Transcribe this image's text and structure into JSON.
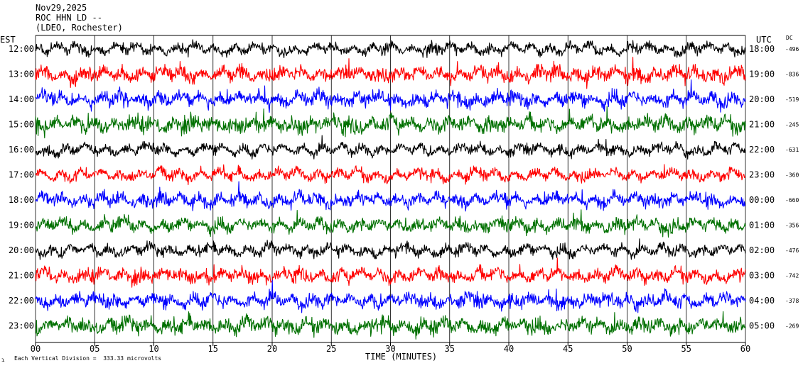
{
  "header": {
    "date": "Nov29,2025",
    "station": "ROC HHN LD --",
    "network": "(LDEO, Rochester)"
  },
  "axis": {
    "left_zone": "EST",
    "right_zone": "UTC",
    "dc_label": "DC",
    "xlabel": "TIME (MINUTES)",
    "footer_mark": "ɿ",
    "scale_note": "Each Vertical Division =  333.33 microvolts"
  },
  "colors": {
    "trace_cycle": [
      "#000000",
      "#ff0000",
      "#0000ff",
      "#007000"
    ],
    "background": "#ffffff",
    "grid": "#000000"
  },
  "chart_data": {
    "type": "line",
    "title": "",
    "xlabel": "TIME (MINUTES)",
    "ylabel": "",
    "xlim": [
      0,
      60
    ],
    "x_ticks": [
      "00",
      "05",
      "10",
      "15",
      "20",
      "25",
      "30",
      "35",
      "40",
      "45",
      "50",
      "55",
      "60"
    ],
    "grid": true,
    "vertical_division_microvolts": 333.33,
    "rows": [
      {
        "est": "12:00",
        "utc": "18:00",
        "dc": "-496",
        "color": "#000000",
        "noise": 0.55
      },
      {
        "est": "13:00",
        "utc": "19:00",
        "dc": "-836",
        "color": "#ff0000",
        "noise": 0.8
      },
      {
        "est": "14:00",
        "utc": "20:00",
        "dc": "-519",
        "color": "#0000ff",
        "noise": 0.8
      },
      {
        "est": "15:00",
        "utc": "21:00",
        "dc": "-245",
        "color": "#007000",
        "noise": 0.85
      },
      {
        "est": "16:00",
        "utc": "22:00",
        "dc": "-631",
        "color": "#000000",
        "noise": 0.55
      },
      {
        "est": "17:00",
        "utc": "23:00",
        "dc": "-360",
        "color": "#ff0000",
        "noise": 0.6
      },
      {
        "est": "18:00",
        "utc": "00:00",
        "dc": "-660",
        "color": "#0000ff",
        "noise": 0.7
      },
      {
        "est": "19:00",
        "utc": "01:00",
        "dc": "-356",
        "color": "#007000",
        "noise": 0.7
      },
      {
        "est": "20:00",
        "utc": "02:00",
        "dc": "-476",
        "color": "#000000",
        "noise": 0.6
      },
      {
        "est": "21:00",
        "utc": "03:00",
        "dc": "-742",
        "color": "#ff0000",
        "noise": 0.7
      },
      {
        "est": "22:00",
        "utc": "04:00",
        "dc": "-378",
        "color": "#0000ff",
        "noise": 0.75
      },
      {
        "est": "23:00",
        "utc": "05:00",
        "dc": "-269",
        "color": "#007000",
        "noise": 0.85
      }
    ]
  }
}
